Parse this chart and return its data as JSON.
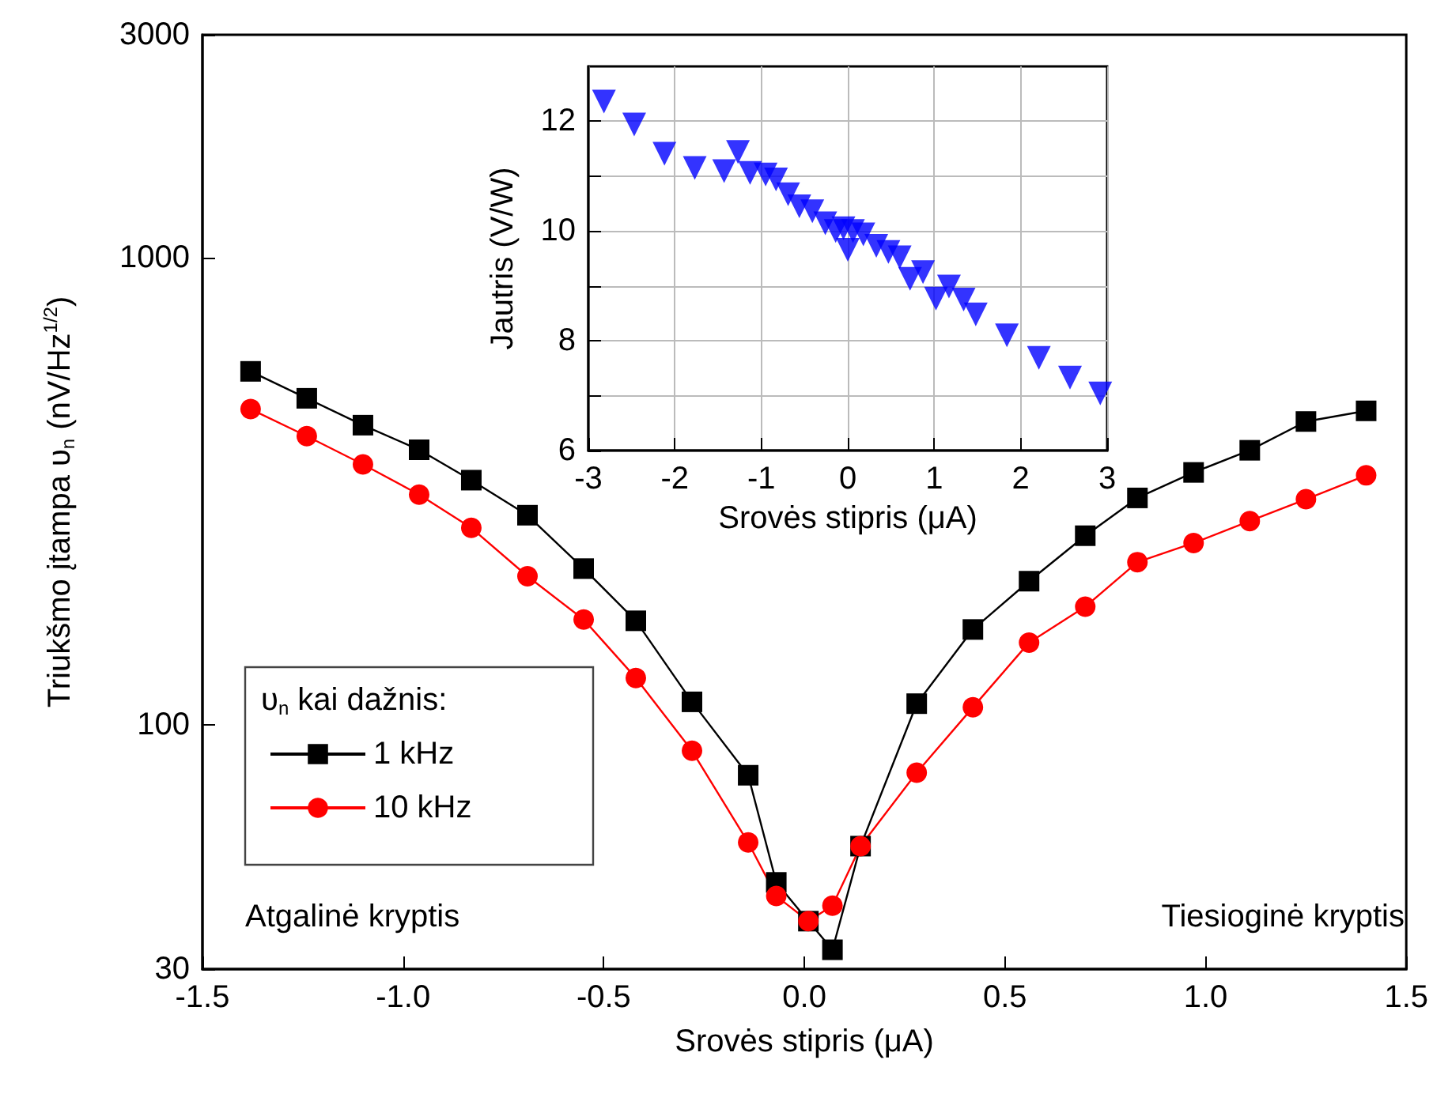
{
  "chart_data": [
    {
      "type": "line",
      "xlabel": "Srovės stipris (μA)",
      "ylabel": "Triukšmo įtampa υ$_{n}$ (nV/Hz$^{1/2}$)",
      "legend_title": "υ$_{n}$ kai dažnis:",
      "log": "y",
      "legend": "bottom left",
      "grid": false,
      "xlim": [
        -1.5,
        1.5
      ],
      "xticks": [
        -1.5,
        {
          "value": -1.0,
          "label": "-1.0"
        },
        -0.5,
        {
          "value": 0.0,
          "label": "0.0"
        },
        0.5,
        {
          "value": 1.0,
          "label": "1.0"
        },
        1.5
      ],
      "ylim": [
        30,
        3000
      ],
      "yticks": [
        30,
        100,
        1000,
        3000
      ],
      "annotations": [
        "Atgalinė kryptis",
        "Tiesioginė kryptis"
      ],
      "series": [
        {
          "name": "1 kHz",
          "color": "#000000",
          "marker": "square",
          "x": [
            -1.38,
            -1.24,
            -1.1,
            -0.96,
            -0.83,
            -0.69,
            -0.55,
            -0.42,
            -0.28,
            -0.14,
            -0.07,
            0.01,
            0.07,
            0.14,
            0.28,
            0.42,
            0.56,
            0.7,
            0.83,
            0.97,
            1.11,
            1.25,
            1.4
          ],
          "values": [
            571,
            500,
            438,
            388,
            334,
            281,
            216,
            167,
            112,
            78,
            46,
            38,
            33,
            55,
            111,
            160,
            203,
            254,
            306,
            347,
            387,
            446,
            470
          ]
        },
        {
          "name": "10 kHz",
          "color": "#ff0000",
          "marker": "circle",
          "x": [
            -1.38,
            -1.24,
            -1.1,
            -0.96,
            -0.83,
            -0.69,
            -0.55,
            -0.42,
            -0.28,
            -0.14,
            -0.07,
            0.01,
            0.07,
            0.14,
            0.28,
            0.42,
            0.56,
            0.7,
            0.83,
            0.97,
            1.11,
            1.25,
            1.4
          ],
          "values": [
            474,
            415,
            361,
            311,
            264,
            208,
            168,
            126,
            88,
            56,
            43,
            38,
            41,
            55,
            79,
            109,
            150,
            179,
            223,
            245,
            273,
            304,
            342
          ]
        }
      ]
    },
    {
      "type": "scatter",
      "xlabel": "Srovės stipris (μA)",
      "ylabel": "Jautris (V/W)",
      "grid": true,
      "marker": "triangle",
      "xlim": [
        -3,
        3
      ],
      "xticks": [
        -3,
        -2,
        -1,
        0,
        1,
        2,
        3
      ],
      "ylim": [
        6,
        13
      ],
      "yticks": [
        6,
        {
          "value": 7,
          "label": null
        },
        8,
        {
          "value": 9,
          "label": null
        },
        10,
        {
          "value": 11,
          "label": null
        },
        12
      ],
      "series": [
        {
          "color": "#0000ff",
          "x": [
            -2.82,
            -2.47,
            -2.12,
            -1.77,
            -1.43,
            -1.27,
            -1.13,
            -0.95,
            -0.83,
            -0.69,
            -0.56,
            -0.41,
            -0.26,
            -0.14,
            -0.05,
            0.0,
            0.06,
            0.18,
            0.33,
            0.47,
            0.6,
            0.72,
            0.87,
            1.02,
            1.17,
            1.34,
            1.48,
            1.84,
            2.21,
            2.57,
            2.92
          ],
          "values": [
            12.36,
            11.94,
            11.41,
            11.15,
            11.09,
            11.44,
            11.06,
            11.03,
            10.94,
            10.67,
            10.45,
            10.36,
            10.14,
            10.0,
            10.05,
            9.66,
            10.0,
            9.94,
            9.73,
            9.62,
            9.52,
            9.13,
            9.25,
            8.77,
            8.99,
            8.75,
            8.48,
            8.1,
            7.69,
            7.33,
            7.04
          ]
        }
      ]
    }
  ]
}
